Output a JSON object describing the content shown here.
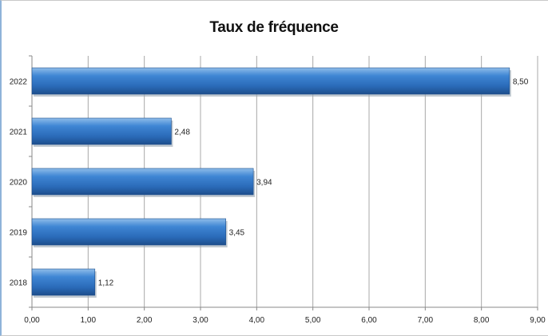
{
  "chart_data": {
    "type": "bar",
    "orientation": "horizontal",
    "title": "Taux de fréquence",
    "categories": [
      "2018",
      "2019",
      "2020",
      "2021",
      "2022"
    ],
    "values": [
      1.12,
      3.45,
      3.94,
      2.48,
      8.5
    ],
    "value_labels": [
      "1,12",
      "3,45",
      "3,94",
      "2,48",
      "8,50"
    ],
    "xlim": [
      0,
      9
    ],
    "x_ticks": [
      0,
      1,
      2,
      3,
      4,
      5,
      6,
      7,
      8,
      9
    ],
    "x_tick_labels": [
      "0,00",
      "1,00",
      "2,00",
      "3,00",
      "4,00",
      "5,00",
      "6,00",
      "7,00",
      "8,00",
      "9,00"
    ],
    "grid": "vertical",
    "bar_color": "#2f74c4",
    "legend": "none"
  }
}
